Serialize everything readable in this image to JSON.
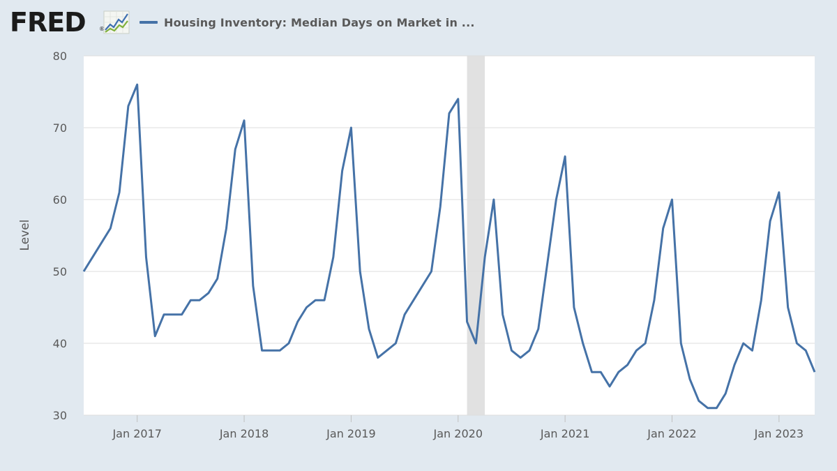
{
  "header": {
    "logo_text": "FRED",
    "logo_mark": "®",
    "logo_icon": "line-graph-icon",
    "legend_label": "Housing Inventory: Median Days on Market in ...",
    "legend_color": "#4572a7"
  },
  "colors": {
    "background": "#e1e9f0",
    "plot_background": "#ffffff",
    "line": "#4572a7",
    "grid": "#dddddd",
    "recession": "#e1e1e1"
  },
  "chart_data": {
    "type": "line",
    "title": "",
    "xlabel": "",
    "ylabel": "Level",
    "ylim": [
      30,
      80
    ],
    "yticks": [
      30,
      40,
      50,
      60,
      70,
      80
    ],
    "xlim": [
      "2016-07",
      "2023-05"
    ],
    "xticks": [
      {
        "date": "2017-01",
        "label": "Jan 2017"
      },
      {
        "date": "2018-01",
        "label": "Jan 2018"
      },
      {
        "date": "2019-01",
        "label": "Jan 2019"
      },
      {
        "date": "2020-01",
        "label": "Jan 2020"
      },
      {
        "date": "2021-01",
        "label": "Jan 2021"
      },
      {
        "date": "2022-01",
        "label": "Jan 2022"
      },
      {
        "date": "2023-01",
        "label": "Jan 2023"
      }
    ],
    "grid": true,
    "recession_band": {
      "start": "2020-02",
      "end": "2020-04"
    },
    "series": [
      {
        "name": "Housing Inventory: Median Days on Market in ...",
        "x": [
          "2016-07",
          "2016-08",
          "2016-09",
          "2016-10",
          "2016-11",
          "2016-12",
          "2017-01",
          "2017-02",
          "2017-03",
          "2017-04",
          "2017-05",
          "2017-06",
          "2017-07",
          "2017-08",
          "2017-09",
          "2017-10",
          "2017-11",
          "2017-12",
          "2018-01",
          "2018-02",
          "2018-03",
          "2018-04",
          "2018-05",
          "2018-06",
          "2018-07",
          "2018-08",
          "2018-09",
          "2018-10",
          "2018-11",
          "2018-12",
          "2019-01",
          "2019-02",
          "2019-03",
          "2019-04",
          "2019-05",
          "2019-06",
          "2019-07",
          "2019-08",
          "2019-09",
          "2019-10",
          "2019-11",
          "2019-12",
          "2020-01",
          "2020-02",
          "2020-03",
          "2020-04",
          "2020-05",
          "2020-06",
          "2020-07",
          "2020-08",
          "2020-09",
          "2020-10",
          "2020-11",
          "2020-12",
          "2021-01",
          "2021-02",
          "2021-03",
          "2021-04",
          "2021-05",
          "2021-06",
          "2021-07",
          "2021-08",
          "2021-09",
          "2021-10",
          "2021-11",
          "2021-12",
          "2022-01",
          "2022-02",
          "2022-03",
          "2022-04",
          "2022-05",
          "2022-06",
          "2022-07",
          "2022-08",
          "2022-09",
          "2022-10",
          "2022-11",
          "2022-12",
          "2023-01",
          "2023-02",
          "2023-03",
          "2023-04",
          "2023-05"
        ],
        "values": [
          50,
          52,
          54,
          56,
          61,
          73,
          76,
          52,
          41,
          44,
          44,
          44,
          46,
          46,
          47,
          49,
          56,
          67,
          71,
          48,
          39,
          39,
          39,
          40,
          43,
          45,
          46,
          46,
          52,
          64,
          70,
          50,
          42,
          38,
          39,
          40,
          44,
          46,
          48,
          50,
          59,
          72,
          74,
          43,
          40,
          52,
          60,
          44,
          39,
          38,
          39,
          42,
          51,
          60,
          66,
          45,
          40,
          36,
          36,
          34,
          36,
          37,
          39,
          40,
          46,
          56,
          60,
          40,
          35,
          32,
          31,
          31,
          33,
          37,
          40,
          39,
          46,
          57,
          61,
          45,
          40,
          39,
          36
        ]
      }
    ]
  }
}
